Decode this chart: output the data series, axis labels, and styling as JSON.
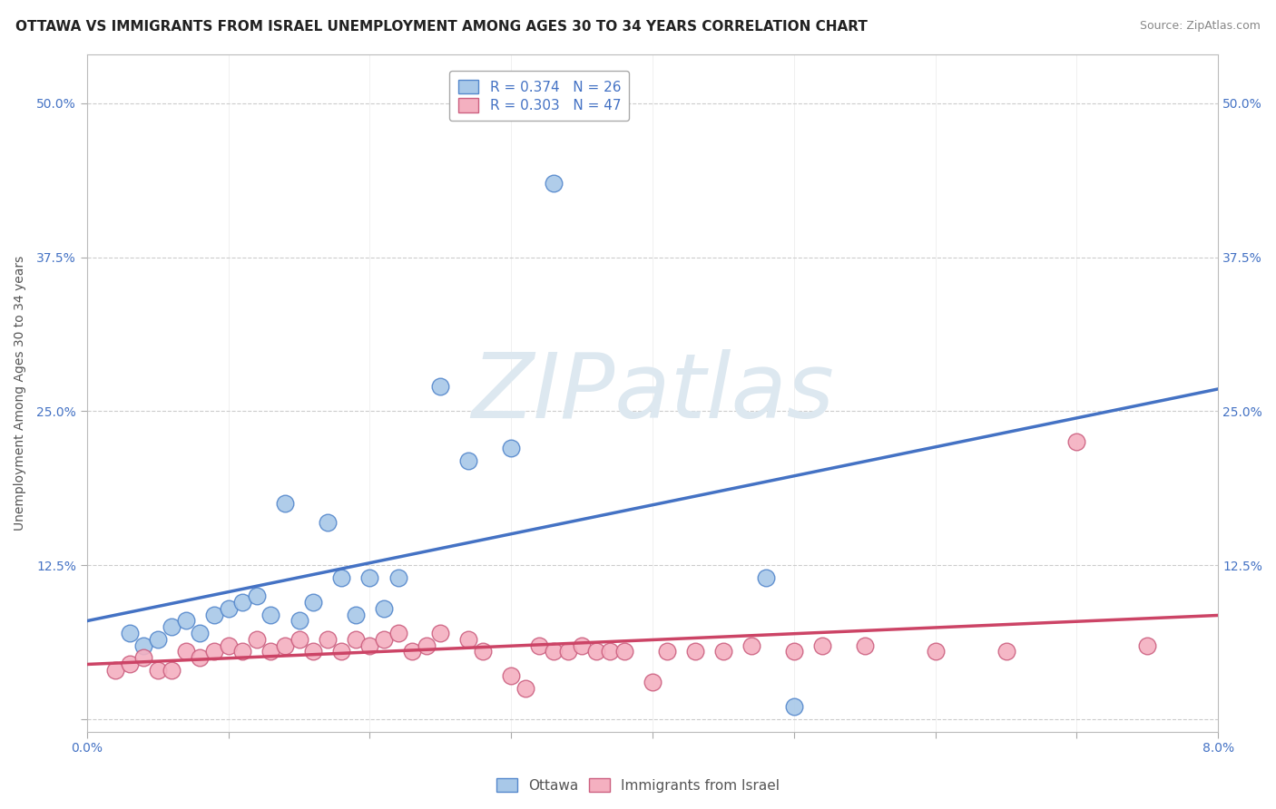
{
  "title": "OTTAWA VS IMMIGRANTS FROM ISRAEL UNEMPLOYMENT AMONG AGES 30 TO 34 YEARS CORRELATION CHART",
  "source": "Source: ZipAtlas.com",
  "ylabel": "Unemployment Among Ages 30 to 34 years",
  "xlim": [
    0.0,
    0.08
  ],
  "ylim": [
    -0.01,
    0.54
  ],
  "xticks": [
    0.0,
    0.01,
    0.02,
    0.03,
    0.04,
    0.05,
    0.06,
    0.07,
    0.08
  ],
  "xticklabels": [
    "0.0%",
    "",
    "",
    "",
    "",
    "",
    "",
    "",
    "8.0%"
  ],
  "ytick_positions": [
    0.0,
    0.125,
    0.25,
    0.375,
    0.5
  ],
  "yticklabels_left": [
    "",
    "12.5%",
    "25.0%",
    "37.5%",
    "50.0%"
  ],
  "yticklabels_right": [
    "",
    "12.5%",
    "25.0%",
    "37.5%",
    "50.0%"
  ],
  "ottawa_R": 0.374,
  "ottawa_N": 26,
  "israel_R": 0.303,
  "israel_N": 47,
  "ottawa_color": "#a8c8e8",
  "ottawa_edge_color": "#5588cc",
  "ottawa_line_color": "#4472c4",
  "israel_color": "#f4b0c0",
  "israel_edge_color": "#cc6080",
  "israel_line_color": "#cc4466",
  "watermark_text": "ZIPatlas",
  "watermark_color": "#dde8f0",
  "background_color": "#ffffff",
  "grid_color": "#cccccc",
  "ottawa_x": [
    0.003,
    0.004,
    0.005,
    0.006,
    0.007,
    0.008,
    0.009,
    0.01,
    0.011,
    0.012,
    0.013,
    0.014,
    0.015,
    0.016,
    0.017,
    0.018,
    0.019,
    0.02,
    0.021,
    0.022,
    0.025,
    0.027,
    0.03,
    0.033,
    0.048,
    0.05
  ],
  "ottawa_y": [
    0.07,
    0.06,
    0.065,
    0.075,
    0.08,
    0.07,
    0.085,
    0.09,
    0.095,
    0.1,
    0.085,
    0.175,
    0.08,
    0.095,
    0.16,
    0.115,
    0.085,
    0.115,
    0.09,
    0.115,
    0.27,
    0.21,
    0.22,
    0.435,
    0.115,
    0.01
  ],
  "israel_x": [
    0.002,
    0.003,
    0.004,
    0.005,
    0.006,
    0.007,
    0.008,
    0.009,
    0.01,
    0.011,
    0.012,
    0.013,
    0.014,
    0.015,
    0.016,
    0.017,
    0.018,
    0.019,
    0.02,
    0.021,
    0.022,
    0.023,
    0.024,
    0.025,
    0.027,
    0.028,
    0.03,
    0.031,
    0.032,
    0.033,
    0.034,
    0.035,
    0.036,
    0.037,
    0.038,
    0.04,
    0.041,
    0.043,
    0.045,
    0.047,
    0.05,
    0.052,
    0.055,
    0.06,
    0.065,
    0.07,
    0.075
  ],
  "israel_y": [
    0.04,
    0.045,
    0.05,
    0.04,
    0.04,
    0.055,
    0.05,
    0.055,
    0.06,
    0.055,
    0.065,
    0.055,
    0.06,
    0.065,
    0.055,
    0.065,
    0.055,
    0.065,
    0.06,
    0.065,
    0.07,
    0.055,
    0.06,
    0.07,
    0.065,
    0.055,
    0.035,
    0.025,
    0.06,
    0.055,
    0.055,
    0.06,
    0.055,
    0.055,
    0.055,
    0.03,
    0.055,
    0.055,
    0.055,
    0.06,
    0.055,
    0.06,
    0.06,
    0.055,
    0.055,
    0.225,
    0.06
  ],
  "title_fontsize": 11,
  "label_fontsize": 10,
  "tick_fontsize": 10,
  "legend_fontsize": 11
}
